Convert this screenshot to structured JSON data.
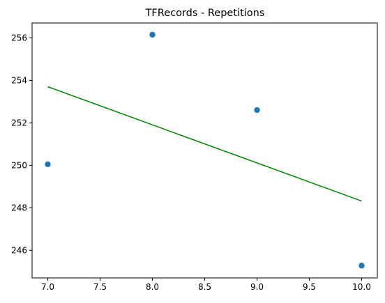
{
  "chart_data": {
    "type": "scatter",
    "title": "TFRecords - Repetitions",
    "xlabel": "",
    "ylabel": "",
    "xlim": [
      6.85,
      10.15
    ],
    "ylim": [
      244.7,
      256.7
    ],
    "x_ticks": [
      "7.0",
      "7.5",
      "8.0",
      "8.5",
      "9.0",
      "9.5",
      "10.0"
    ],
    "y_ticks": [
      "246",
      "248",
      "250",
      "252",
      "254",
      "256"
    ],
    "grid": false,
    "series": [
      {
        "type": "scatter",
        "color": "#1f77b4",
        "points": [
          {
            "x": 7,
            "y": 250.05
          },
          {
            "x": 8,
            "y": 256.15
          },
          {
            "x": 9,
            "y": 252.6
          },
          {
            "x": 10,
            "y": 245.28
          }
        ]
      },
      {
        "type": "line",
        "color": "#008000",
        "points": [
          {
            "x": 7,
            "y": 253.7
          },
          {
            "x": 10,
            "y": 248.32
          }
        ]
      }
    ]
  }
}
